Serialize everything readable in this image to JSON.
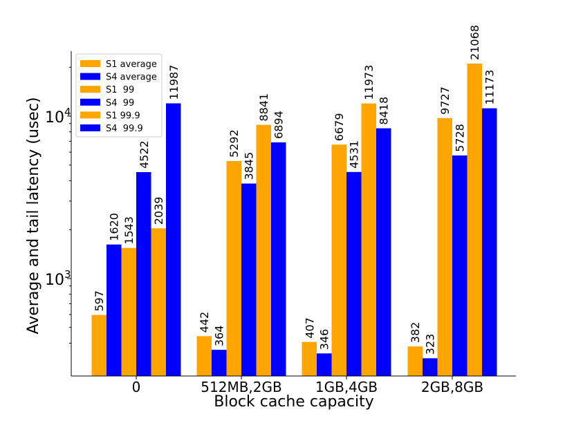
{
  "chart_data": {
    "type": "bar",
    "title": "",
    "xlabel": "Block cache capacity",
    "ylabel": "Average and tail latency (usec)",
    "yscale": "log",
    "ylim": [
      310,
      26000
    ],
    "yticks": [
      {
        "value": 1000,
        "base": "10",
        "exp": "3"
      },
      {
        "value": 10000,
        "base": "10",
        "exp": "4"
      }
    ],
    "categories": [
      "0",
      "512MB,2GB",
      "1GB,4GB",
      "2GB,8GB"
    ],
    "series": [
      {
        "name": "S1 average",
        "color": "#FFA500",
        "values": [
          597,
          442,
          407,
          382
        ],
        "labels": [
          "597",
          "442",
          "407",
          "382"
        ]
      },
      {
        "name": "S4 average",
        "color": "#0000FF",
        "values": [
          1620,
          364,
          346,
          323
        ],
        "labels": [
          "1620",
          "364",
          "346",
          "323"
        ]
      },
      {
        "name": "S1  99",
        "color": "#FFA500",
        "values": [
          1543,
          5292,
          6679,
          9727
        ],
        "labels": [
          "1543",
          "5292",
          "6679",
          "9727"
        ]
      },
      {
        "name": "S4  99",
        "color": "#0000FF",
        "values": [
          4522,
          3845,
          4531,
          5728
        ],
        "labels": [
          "4522",
          "3845",
          "4531",
          "5728"
        ]
      },
      {
        "name": "S1 99.9",
        "color": "#FFA500",
        "values": [
          2039,
          8841,
          11973,
          21068
        ],
        "labels": [
          "2039",
          "8841",
          "11973",
          "21068"
        ]
      },
      {
        "name": "S4  99.9",
        "color": "#0000FF",
        "values": [
          11987,
          6894,
          8418,
          11173
        ],
        "labels": [
          "11987",
          "6894",
          "8418",
          "11173"
        ]
      }
    ],
    "legend": "top-left",
    "grid": false
  }
}
